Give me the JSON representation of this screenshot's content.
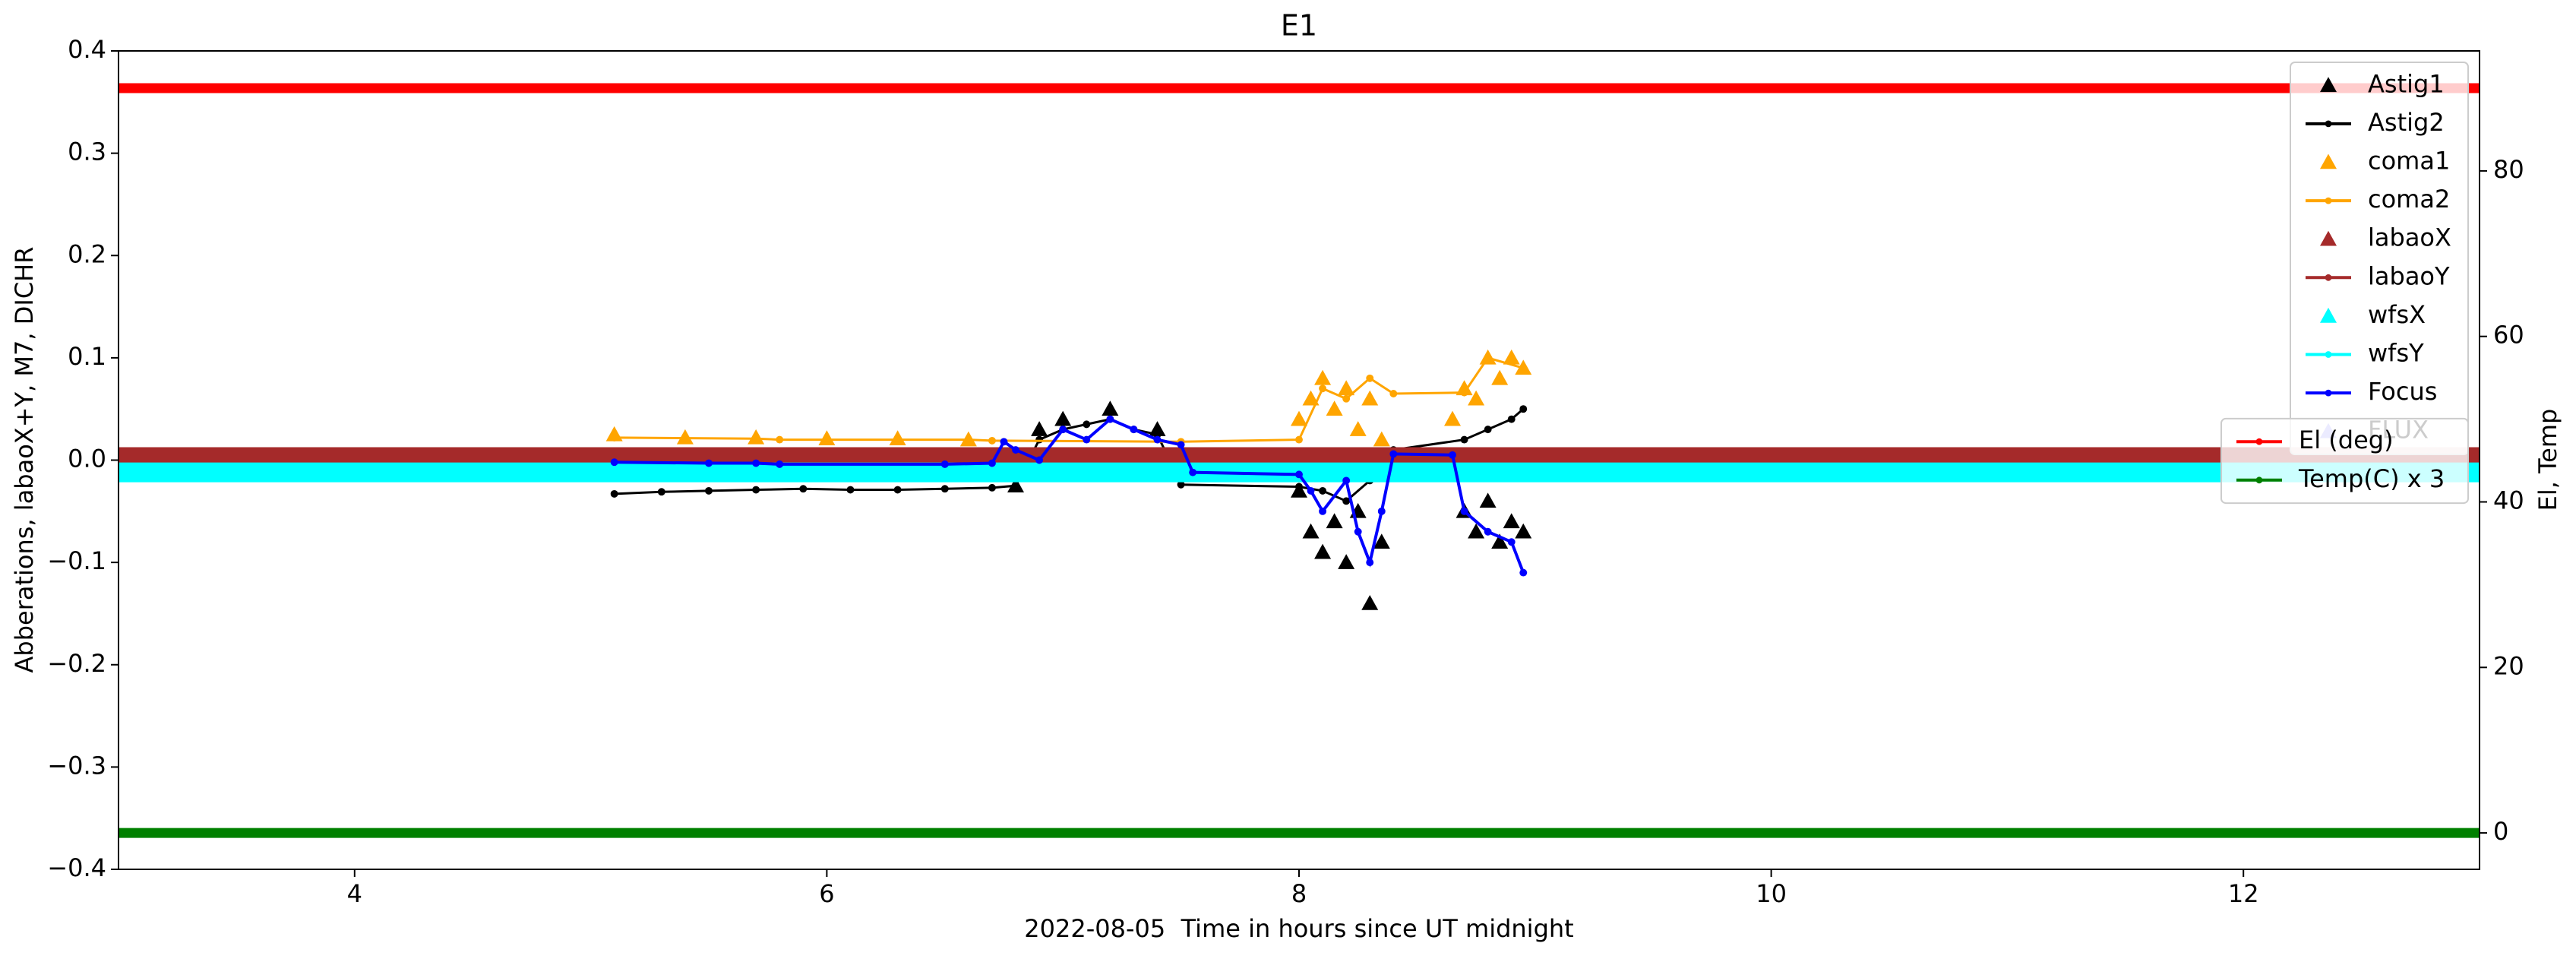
{
  "chart_data": {
    "type": "line",
    "title": "E1",
    "x_label": "2022-08-05  Time in hours since UT midnight",
    "y_label": "Abberations, labaoX+Y, M7, DICHR",
    "y2_label": "El, Temp",
    "xlim": [
      3,
      13
    ],
    "xticks": [
      4,
      6,
      8,
      10,
      12
    ],
    "ylim": [
      -0.4,
      0.4
    ],
    "yticks": [
      {
        "value": -0.4,
        "label": "−0.4"
      },
      {
        "value": -0.3,
        "label": "−0.3"
      },
      {
        "value": -0.2,
        "label": "−0.2"
      },
      {
        "value": -0.1,
        "label": "−0.1"
      },
      {
        "value": 0,
        "label": "0.0"
      },
      {
        "value": 0.1,
        "label": "0.1"
      },
      {
        "value": 0.2,
        "label": "0.2"
      },
      {
        "value": 0.3,
        "label": "0.3"
      },
      {
        "value": 0.4,
        "label": "0.4"
      }
    ],
    "y2lim": [
      -4.4,
      94.5
    ],
    "y2ticks": [
      0,
      20,
      40,
      60,
      80
    ],
    "legend": "upper right",
    "legend_y2": "center right",
    "series": [
      {
        "name": "Astig1",
        "color": "#000000",
        "x": [
          6.8,
          6.9,
          7.0,
          7.2,
          7.4,
          8.0,
          8.05,
          8.1,
          8.15,
          8.2,
          8.25,
          8.3,
          8.35,
          8.7,
          8.75,
          8.8,
          8.85,
          8.9,
          8.95
        ],
        "values": [
          -0.025,
          0.03,
          0.04,
          0.05,
          0.03,
          -0.03,
          -0.07,
          -0.09,
          -0.06,
          -0.1,
          -0.05,
          -0.14,
          -0.08,
          -0.05,
          -0.07,
          -0.04,
          -0.08,
          -0.06,
          -0.07
        ]
      },
      {
        "name": "Astig2",
        "color": "#000000",
        "x": [
          5.1,
          5.3,
          5.5,
          5.7,
          5.9,
          6.1,
          6.3,
          6.5,
          6.7,
          6.8,
          6.9,
          7.0,
          7.1,
          7.2,
          7.3,
          7.4,
          7.5,
          8.0,
          8.1,
          8.2,
          8.3,
          8.4,
          8.7,
          8.8,
          8.9,
          8.95
        ],
        "values": [
          -0.033,
          -0.031,
          -0.03,
          -0.029,
          -0.028,
          -0.029,
          -0.029,
          -0.028,
          -0.027,
          -0.025,
          0.02,
          0.03,
          0.035,
          0.04,
          0.03,
          0.025,
          -0.024,
          -0.026,
          -0.03,
          -0.04,
          -0.02,
          0.01,
          0.02,
          0.03,
          0.04,
          0.05
        ]
      },
      {
        "name": "coma1",
        "color": "#ffa500",
        "x": [
          5.1,
          5.4,
          5.7,
          6.0,
          6.3,
          6.6,
          8.0,
          8.05,
          8.1,
          8.15,
          8.2,
          8.25,
          8.3,
          8.35,
          8.65,
          8.7,
          8.75,
          8.8,
          8.85,
          8.9,
          8.95
        ],
        "values": [
          0.025,
          0.022,
          0.022,
          0.021,
          0.021,
          0.02,
          0.04,
          0.06,
          0.08,
          0.05,
          0.07,
          0.03,
          0.06,
          0.02,
          0.04,
          0.07,
          0.06,
          0.1,
          0.08,
          0.1,
          0.09
        ]
      },
      {
        "name": "coma2",
        "color": "#ffa500",
        "x": [
          5.1,
          5.7,
          5.8,
          6.6,
          6.7,
          7.5,
          8.0,
          8.1,
          8.2,
          8.3,
          8.4,
          8.7,
          8.8,
          8.95
        ],
        "values": [
          0.022,
          0.021,
          0.02,
          0.02,
          0.019,
          0.018,
          0.02,
          0.07,
          0.06,
          0.08,
          0.065,
          0.066,
          0.1,
          0.09
        ]
      },
      {
        "name": "labaoX",
        "color": "#a52a2a",
        "x": [],
        "values": []
      },
      {
        "name": "labaoY",
        "color": "#a52a2a",
        "x": [
          3,
          13
        ],
        "values": [
          0.003,
          0.003
        ]
      },
      {
        "name": "wfsX",
        "color": "#00ffff",
        "x": [],
        "values": []
      },
      {
        "name": "wfsY",
        "color": "#00ffff",
        "x": [
          3,
          13
        ],
        "values": [
          -0.012,
          -0.012
        ]
      },
      {
        "name": "Focus",
        "color": "#0000ff",
        "x": [
          5.1,
          5.5,
          5.7,
          5.8,
          6.5,
          6.7,
          6.75,
          6.8,
          6.9,
          7.0,
          7.1,
          7.2,
          7.3,
          7.4,
          7.5,
          7.55,
          8.0,
          8.05,
          8.1,
          8.2,
          8.25,
          8.3,
          8.35,
          8.4,
          8.65,
          8.7,
          8.8,
          8.9,
          8.95
        ],
        "values": [
          -0.002,
          -0.003,
          -0.003,
          -0.004,
          -0.004,
          -0.003,
          0.018,
          0.01,
          0.0,
          0.03,
          0.02,
          0.04,
          0.03,
          0.02,
          0.015,
          -0.012,
          -0.014,
          -0.03,
          -0.05,
          -0.02,
          -0.07,
          -0.1,
          -0.05,
          0.006,
          0.005,
          -0.05,
          -0.07,
          -0.08,
          -0.11
        ]
      },
      {
        "name": "FLUX",
        "color": "#9999ff",
        "x": [],
        "values": []
      },
      {
        "name": "El (deg)",
        "color": "#ff0000",
        "axis": "y2",
        "x": [
          3,
          13
        ],
        "values": [
          90,
          90
        ]
      },
      {
        "name": "Temp(C) x 3",
        "color": "#008000",
        "axis": "y2",
        "x": [
          3,
          13
        ],
        "values": [
          0,
          0
        ]
      }
    ]
  }
}
